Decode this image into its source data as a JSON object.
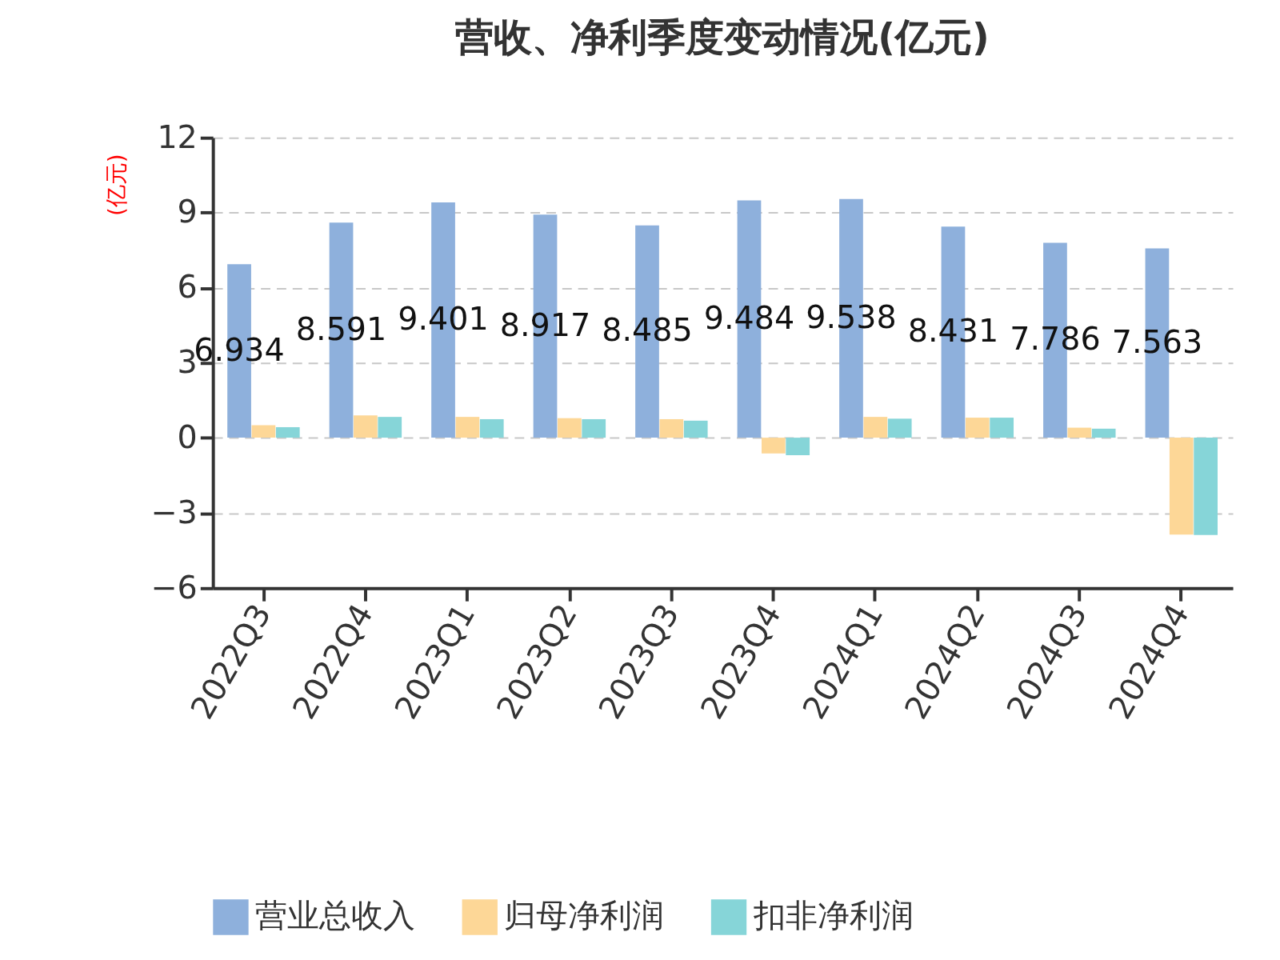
{
  "chart_data": {
    "type": "bar",
    "title": "营收、净利季度变动情况(亿元)",
    "ylabel": "(亿元)",
    "categories": [
      "2022Q3",
      "2022Q4",
      "2023Q1",
      "2023Q2",
      "2023Q3",
      "2023Q4",
      "2024Q1",
      "2024Q2",
      "2024Q3",
      "2024Q4"
    ],
    "series": [
      {
        "name": "营业总收入",
        "color": "#8eb0dc",
        "values": [
          6.934,
          8.591,
          9.401,
          8.917,
          8.485,
          9.484,
          9.538,
          8.431,
          7.786,
          7.563
        ],
        "value_labels": [
          "6.934",
          "8.591",
          "9.401",
          "8.917",
          "8.485",
          "9.484",
          "9.538",
          "8.431",
          "7.786",
          "7.563"
        ]
      },
      {
        "name": "归母净利润",
        "color": "#fdd797",
        "values": [
          0.5,
          0.89,
          0.83,
          0.78,
          0.74,
          -0.63,
          0.83,
          0.8,
          0.4,
          -3.87
        ]
      },
      {
        "name": "扣非净利润",
        "color": "#86d5d8",
        "values": [
          0.42,
          0.83,
          0.74,
          0.74,
          0.68,
          -0.7,
          0.76,
          0.8,
          0.36,
          -3.89
        ]
      }
    ],
    "ylim": [
      -6,
      12
    ],
    "yticks": [
      -6,
      -3,
      0,
      3,
      6,
      9,
      12
    ],
    "grid": "y",
    "legend": "bottom"
  }
}
